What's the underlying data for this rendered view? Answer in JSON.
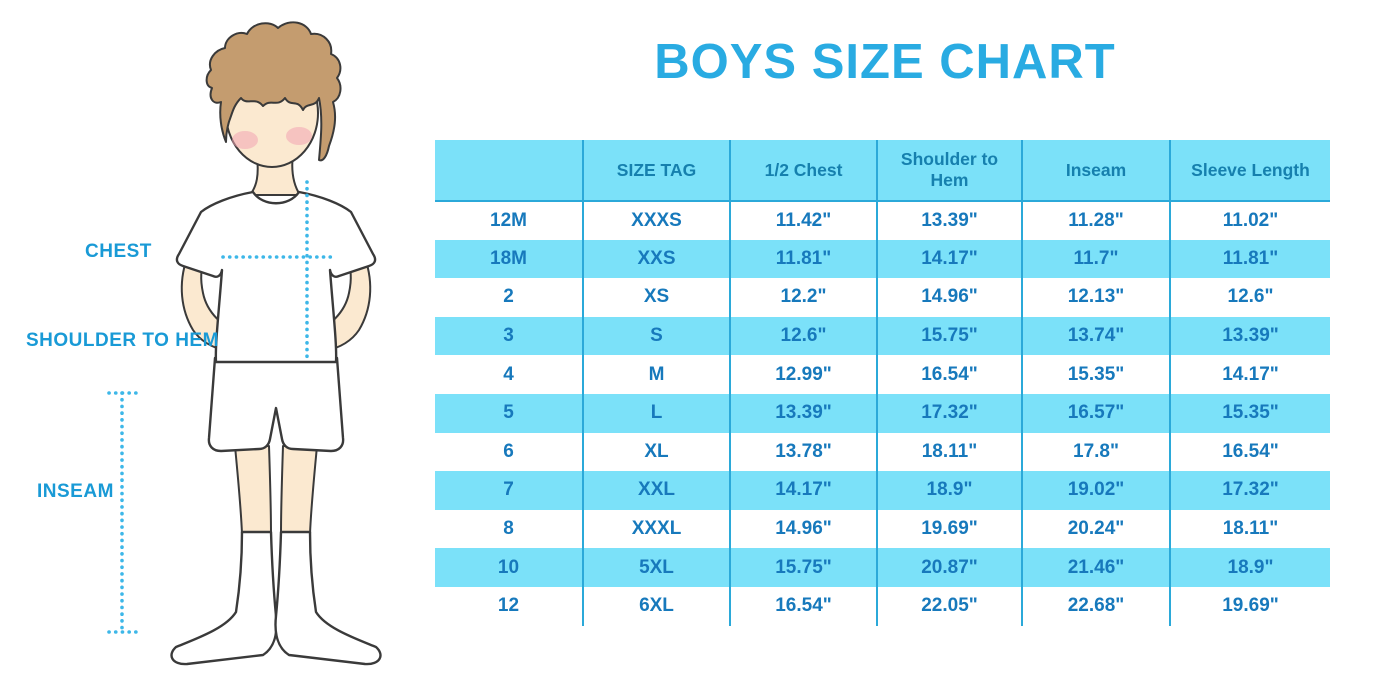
{
  "title": "BOYS SIZE CHART",
  "figure": {
    "chest_label": "CHEST",
    "shoulder_label": "SHOULDER TO HEM",
    "inseam_label": "INSEAM"
  },
  "colors": {
    "title-blue": "#29ABE2",
    "label-blue": "#199AD6",
    "stripe": "#7BE1F9",
    "border": "#2BA9D9",
    "header-text": "#1680AE",
    "body-text": "#1779BC",
    "dotted": "#3DB7E8",
    "skin": "#FBE9D0",
    "hair": "#C49C6F",
    "cheek": "#F2A4B2"
  },
  "chart_data": {
    "type": "table",
    "title": "BOYS SIZE CHART",
    "columns": [
      "",
      "SIZE TAG",
      "1/2 Chest",
      "Shoulder to Hem",
      "Inseam",
      "Sleeve Length"
    ],
    "rows": [
      [
        "12M",
        "XXXS",
        "11.42\"",
        "13.39\"",
        "11.28\"",
        "11.02\""
      ],
      [
        "18M",
        "XXS",
        "11.81\"",
        "14.17\"",
        "11.7\"",
        "11.81\""
      ],
      [
        "2",
        "XS",
        "12.2\"",
        "14.96\"",
        "12.13\"",
        "12.6\""
      ],
      [
        "3",
        "S",
        "12.6\"",
        "15.75\"",
        "13.74\"",
        "13.39\""
      ],
      [
        "4",
        "M",
        "12.99\"",
        "16.54\"",
        "15.35\"",
        "14.17\""
      ],
      [
        "5",
        "L",
        "13.39\"",
        "17.32\"",
        "16.57\"",
        "15.35\""
      ],
      [
        "6",
        "XL",
        "13.78\"",
        "18.11\"",
        "17.8\"",
        "16.54\""
      ],
      [
        "7",
        "XXL",
        "14.17\"",
        "18.9\"",
        "19.02\"",
        "17.32\""
      ],
      [
        "8",
        "XXXL",
        "14.96\"",
        "19.69\"",
        "20.24\"",
        "18.11\""
      ],
      [
        "10",
        "5XL",
        "15.75\"",
        "20.87\"",
        "21.46\"",
        "18.9\""
      ],
      [
        "12",
        "6XL",
        "16.54\"",
        "22.05\"",
        "22.68\"",
        "19.69\""
      ]
    ]
  }
}
